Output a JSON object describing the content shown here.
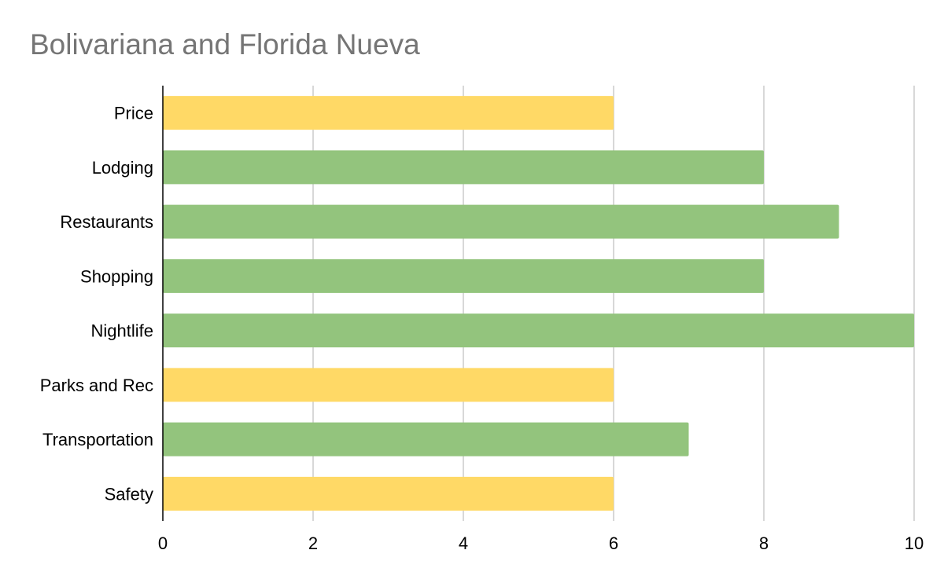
{
  "chart_data": {
    "type": "bar",
    "orientation": "horizontal",
    "title": "Bolivariana and Florida Nueva",
    "xlabel": "",
    "ylabel": "",
    "categories": [
      "Price",
      "Lodging",
      "Restaurants",
      "Shopping",
      "Nightlife",
      "Parks and Rec",
      "Transportation",
      "Safety"
    ],
    "values": [
      6,
      8,
      9,
      8,
      10,
      6,
      7,
      6
    ],
    "bar_colors": [
      "#ffd966",
      "#93c47d",
      "#93c47d",
      "#93c47d",
      "#93c47d",
      "#ffd966",
      "#93c47d",
      "#ffd966"
    ],
    "xlim": [
      0,
      10
    ],
    "xticks": [
      "0",
      "2",
      "4",
      "6",
      "8",
      "10"
    ],
    "grid": "vertical",
    "legend": "none",
    "colors": {
      "title": "#757575",
      "grid": "#cccccc",
      "axis": "#000000"
    }
  }
}
